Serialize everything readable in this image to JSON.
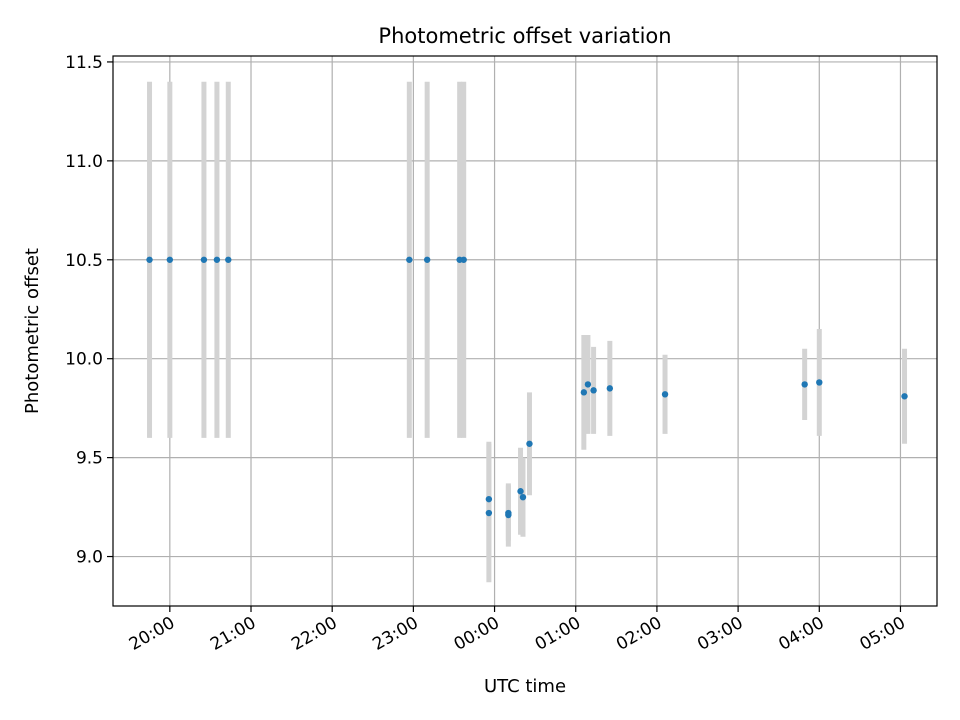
{
  "chart_data": {
    "type": "scatter",
    "title": "Photometric offset variation",
    "xlabel": "UTC time",
    "ylabel": "Photometric offset",
    "x_unit": "UTC time of night (hours, times after midnight counted past 24)",
    "xlim": [
      19.3,
      29.45
    ],
    "ylim": [
      8.75,
      11.53
    ],
    "x_ticks": [
      {
        "value": 20,
        "label": "20:00"
      },
      {
        "value": 21,
        "label": "21:00"
      },
      {
        "value": 22,
        "label": "22:00"
      },
      {
        "value": 23,
        "label": "23:00"
      },
      {
        "value": 24,
        "label": "00:00"
      },
      {
        "value": 25,
        "label": "01:00"
      },
      {
        "value": 26,
        "label": "02:00"
      },
      {
        "value": 27,
        "label": "03:00"
      },
      {
        "value": 28,
        "label": "04:00"
      },
      {
        "value": 29,
        "label": "05:00"
      }
    ],
    "y_ticks": [
      {
        "value": 9.0,
        "label": "9.0"
      },
      {
        "value": 9.5,
        "label": "9.5"
      },
      {
        "value": 10.0,
        "label": "10.0"
      },
      {
        "value": 10.5,
        "label": "10.5"
      },
      {
        "value": 11.0,
        "label": "11.0"
      },
      {
        "value": 11.5,
        "label": "11.5"
      }
    ],
    "grid": true,
    "marker_color": "#1f77b4",
    "errorbar_color": "#d3d3d3",
    "points": [
      {
        "x": 19.75,
        "y": 10.5,
        "err": 0.9
      },
      {
        "x": 20.0,
        "y": 10.5,
        "err": 0.9
      },
      {
        "x": 20.42,
        "y": 10.5,
        "err": 0.9
      },
      {
        "x": 20.58,
        "y": 10.5,
        "err": 0.9
      },
      {
        "x": 20.72,
        "y": 10.5,
        "err": 0.9
      },
      {
        "x": 22.95,
        "y": 10.5,
        "err": 0.9
      },
      {
        "x": 23.17,
        "y": 10.5,
        "err": 0.9
      },
      {
        "x": 23.57,
        "y": 10.5,
        "err": 0.9
      },
      {
        "x": 23.62,
        "y": 10.5,
        "err": 0.9
      },
      {
        "x": 23.93,
        "y": 9.22,
        "err": 0.35
      },
      {
        "x": 23.93,
        "y": 9.29,
        "err": 0.29
      },
      {
        "x": 24.17,
        "y": 9.22,
        "err": 0.14
      },
      {
        "x": 24.17,
        "y": 9.21,
        "err": 0.16
      },
      {
        "x": 24.32,
        "y": 9.33,
        "err": 0.22
      },
      {
        "x": 24.35,
        "y": 9.3,
        "err": 0.2
      },
      {
        "x": 24.43,
        "y": 9.57,
        "err": 0.26
      },
      {
        "x": 25.1,
        "y": 9.83,
        "err": 0.29
      },
      {
        "x": 25.15,
        "y": 9.87,
        "err": 0.25
      },
      {
        "x": 25.22,
        "y": 9.84,
        "err": 0.22
      },
      {
        "x": 25.42,
        "y": 9.85,
        "err": 0.24
      },
      {
        "x": 26.1,
        "y": 9.82,
        "err": 0.2
      },
      {
        "x": 27.82,
        "y": 9.87,
        "err": 0.18
      },
      {
        "x": 28.0,
        "y": 9.88,
        "err": 0.27
      },
      {
        "x": 29.05,
        "y": 9.81,
        "err": 0.24
      }
    ]
  }
}
